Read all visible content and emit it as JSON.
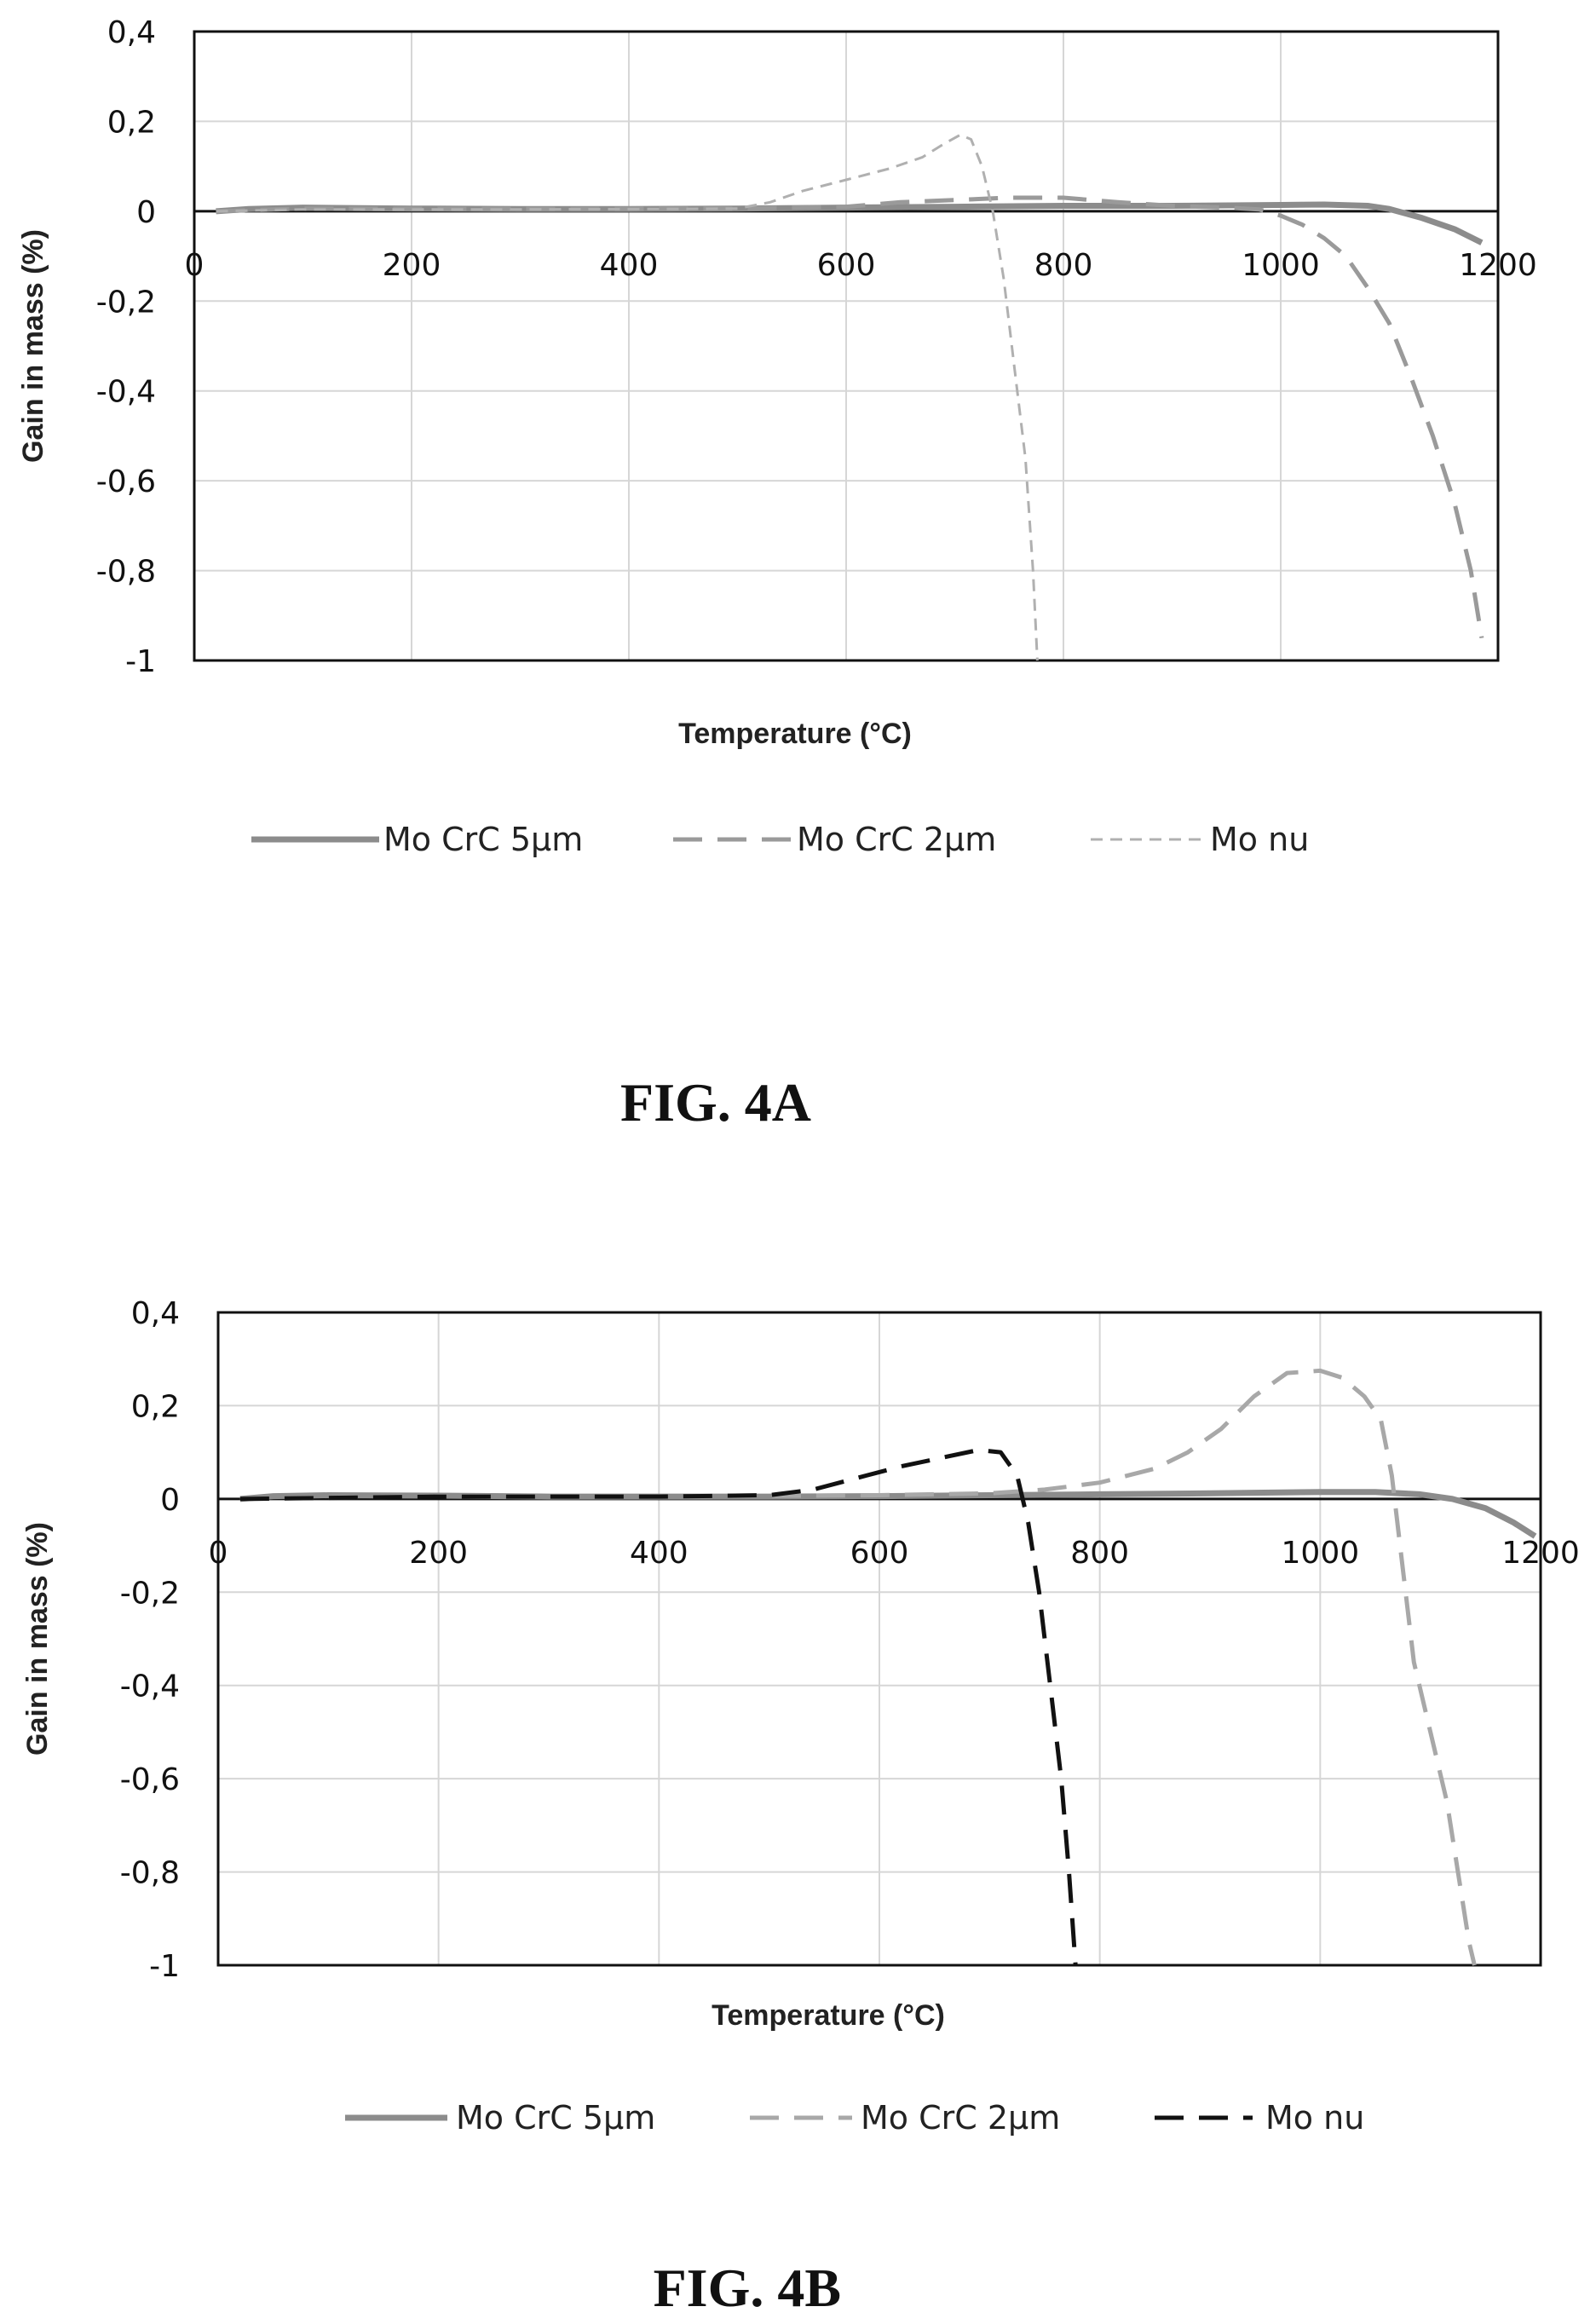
{
  "chart_data": [
    {
      "id": "fig4a",
      "type": "line",
      "caption": "FIG. 4A",
      "xlabel": "Temperature (°C)",
      "ylabel": "Gain in mass (%)",
      "xlim": [
        0,
        1200
      ],
      "ylim": [
        -1,
        0.4
      ],
      "x_ticks": [
        0,
        200,
        400,
        600,
        800,
        1000,
        1200
      ],
      "x_tick_labels": [
        "0",
        "200",
        "400",
        "600",
        "800",
        "1000",
        "1200"
      ],
      "y_ticks": [
        0.4,
        0.2,
        0,
        -0.2,
        -0.4,
        -0.6,
        -0.8,
        -1
      ],
      "y_tick_labels": [
        "0,4",
        "0,2",
        "0",
        "-0,2",
        "-0,4",
        "-0,6",
        "-0,8",
        "-1"
      ],
      "grid": true,
      "legend_position": "bottom",
      "series": [
        {
          "name": "Mo CrC 5µm",
          "color": "#8c8c8c",
          "style": "solid",
          "points": [
            [
              20,
              0
            ],
            [
              50,
              0.005
            ],
            [
              100,
              0.008
            ],
            [
              200,
              0.006
            ],
            [
              300,
              0.005
            ],
            [
              400,
              0.005
            ],
            [
              500,
              0.006
            ],
            [
              600,
              0.008
            ],
            [
              700,
              0.01
            ],
            [
              800,
              0.012
            ],
            [
              900,
              0.012
            ],
            [
              1000,
              0.014
            ],
            [
              1040,
              0.015
            ],
            [
              1080,
              0.012
            ],
            [
              1100,
              0.005
            ],
            [
              1130,
              -0.015
            ],
            [
              1160,
              -0.04
            ],
            [
              1185,
              -0.07
            ]
          ]
        },
        {
          "name": "Mo CrC 2µm",
          "color": "#9a9a9a",
          "style": "long-dash",
          "points": [
            [
              20,
              0
            ],
            [
              100,
              0.006
            ],
            [
              300,
              0.005
            ],
            [
              500,
              0.006
            ],
            [
              600,
              0.01
            ],
            [
              650,
              0.02
            ],
            [
              700,
              0.025
            ],
            [
              750,
              0.03
            ],
            [
              800,
              0.03
            ],
            [
              850,
              0.02
            ],
            [
              900,
              0.012
            ],
            [
              950,
              0.008
            ],
            [
              980,
              0.004
            ],
            [
              1000,
              -0.01
            ],
            [
              1020,
              -0.03
            ],
            [
              1040,
              -0.06
            ],
            [
              1060,
              -0.1
            ],
            [
              1080,
              -0.17
            ],
            [
              1100,
              -0.25
            ],
            [
              1120,
              -0.37
            ],
            [
              1140,
              -0.5
            ],
            [
              1160,
              -0.65
            ],
            [
              1175,
              -0.8
            ],
            [
              1185,
              -0.95
            ]
          ]
        },
        {
          "name": "Mo nu",
          "color": "#b0b0b0",
          "style": "short-dash",
          "points": [
            [
              20,
              0
            ],
            [
              100,
              0.004
            ],
            [
              300,
              0.004
            ],
            [
              450,
              0.005
            ],
            [
              500,
              0.006
            ],
            [
              530,
              0.02
            ],
            [
              560,
              0.045
            ],
            [
              600,
              0.07
            ],
            [
              640,
              0.095
            ],
            [
              670,
              0.12
            ],
            [
              690,
              0.15
            ],
            [
              705,
              0.17
            ],
            [
              715,
              0.16
            ],
            [
              725,
              0.1
            ],
            [
              735,
              0
            ],
            [
              745,
              -0.15
            ],
            [
              755,
              -0.35
            ],
            [
              765,
              -0.55
            ],
            [
              772,
              -0.8
            ],
            [
              776,
              -1
            ]
          ]
        }
      ]
    },
    {
      "id": "fig4b",
      "type": "line",
      "caption": "FIG. 4B",
      "xlabel": "Temperature (°C)",
      "ylabel": "Gain in mass (%)",
      "xlim": [
        0,
        1200
      ],
      "ylim": [
        -1,
        0.4
      ],
      "x_ticks": [
        0,
        200,
        400,
        600,
        800,
        1000,
        1200
      ],
      "x_tick_labels": [
        "0",
        "200",
        "400",
        "600",
        "800",
        "1000",
        "1200"
      ],
      "y_ticks": [
        0.4,
        0.2,
        0,
        -0.2,
        -0.4,
        -0.6,
        -0.8,
        -1
      ],
      "y_tick_labels": [
        "0,4",
        "0,2",
        "0",
        "-0,2",
        "-0,4",
        "-0,6",
        "-0,8",
        "-1"
      ],
      "grid": true,
      "legend_position": "bottom",
      "series": [
        {
          "name": "Mo CrC 5µm",
          "color": "#8c8c8c",
          "style": "solid",
          "points": [
            [
              20,
              0
            ],
            [
              50,
              0.006
            ],
            [
              100,
              0.008
            ],
            [
              200,
              0.007
            ],
            [
              300,
              0.005
            ],
            [
              400,
              0.005
            ],
            [
              500,
              0.005
            ],
            [
              600,
              0.006
            ],
            [
              700,
              0.008
            ],
            [
              800,
              0.01
            ],
            [
              900,
              0.012
            ],
            [
              1000,
              0.015
            ],
            [
              1050,
              0.015
            ],
            [
              1090,
              0.01
            ],
            [
              1120,
              0
            ],
            [
              1150,
              -0.02
            ],
            [
              1175,
              -0.05
            ],
            [
              1195,
              -0.08
            ]
          ]
        },
        {
          "name": "Mo CrC 2µm",
          "color": "#a8a8a8",
          "style": "long-dash",
          "points": [
            [
              20,
              0
            ],
            [
              200,
              0.006
            ],
            [
              400,
              0.005
            ],
            [
              600,
              0.008
            ],
            [
              700,
              0.012
            ],
            [
              750,
              0.02
            ],
            [
              800,
              0.035
            ],
            [
              850,
              0.065
            ],
            [
              880,
              0.1
            ],
            [
              910,
              0.15
            ],
            [
              940,
              0.22
            ],
            [
              970,
              0.27
            ],
            [
              1000,
              0.275
            ],
            [
              1020,
              0.26
            ],
            [
              1040,
              0.22
            ],
            [
              1055,
              0.17
            ],
            [
              1065,
              0.05
            ],
            [
              1075,
              -0.15
            ],
            [
              1085,
              -0.35
            ],
            [
              1100,
              -0.5
            ],
            [
              1115,
              -0.65
            ],
            [
              1125,
              -0.8
            ],
            [
              1135,
              -0.95
            ],
            [
              1140,
              -1
            ]
          ]
        },
        {
          "name": "Mo nu",
          "color": "#111111",
          "style": "long-dash",
          "points": [
            [
              20,
              0
            ],
            [
              200,
              0.005
            ],
            [
              400,
              0.005
            ],
            [
              500,
              0.008
            ],
            [
              540,
              0.02
            ],
            [
              580,
              0.045
            ],
            [
              620,
              0.07
            ],
            [
              660,
              0.09
            ],
            [
              690,
              0.105
            ],
            [
              710,
              0.1
            ],
            [
              725,
              0.05
            ],
            [
              735,
              -0.05
            ],
            [
              745,
              -0.2
            ],
            [
              755,
              -0.4
            ],
            [
              765,
              -0.6
            ],
            [
              772,
              -0.8
            ],
            [
              778,
              -1
            ]
          ]
        }
      ]
    }
  ]
}
